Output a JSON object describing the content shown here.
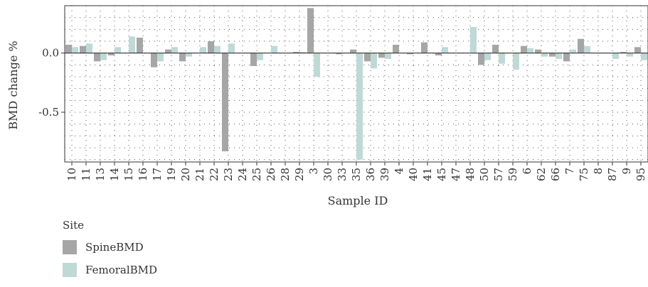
{
  "chart_data": {
    "type": "bar",
    "xlabel": "Sample ID",
    "ylabel": "BMD change %",
    "ylim": [
      -0.92,
      0.4
    ],
    "yticks": [
      "0.0",
      "-0.5"
    ],
    "ytick_values": [
      0.0,
      -0.5
    ],
    "grid": "dotted",
    "legend_title": "Site",
    "legend_position": "bottom-left",
    "categories": [
      "10",
      "11",
      "13",
      "14",
      "15",
      "16",
      "17",
      "19",
      "20",
      "21",
      "22",
      "23",
      "24",
      "25",
      "26",
      "28",
      "29",
      "3",
      "30",
      "33",
      "35",
      "36",
      "39",
      "4",
      "40",
      "41",
      "45",
      "47",
      "48",
      "50",
      "57",
      "59",
      "6",
      "62",
      "66",
      "7",
      "75",
      "8",
      "87",
      "9",
      "95"
    ],
    "series": [
      {
        "name": "SpineBMD",
        "color": "#a6a6a6",
        "values": [
          0.07,
          0.06,
          -0.07,
          -0.02,
          0.0,
          0.13,
          -0.12,
          0.03,
          -0.07,
          0.0,
          0.1,
          -0.83,
          0.0,
          -0.11,
          0.0,
          0.0,
          0.01,
          0.38,
          0.0,
          -0.01,
          0.03,
          -0.07,
          -0.04,
          0.07,
          -0.01,
          0.09,
          -0.02,
          0.0,
          0.0,
          -0.1,
          0.07,
          0.0,
          0.06,
          0.03,
          -0.03,
          -0.07,
          0.12,
          0.0,
          0.0,
          0.01,
          0.05
        ]
      },
      {
        "name": "FemoralBMD",
        "color": "#bfd9d6",
        "values": [
          0.05,
          0.08,
          -0.06,
          0.05,
          0.14,
          0.0,
          -0.07,
          0.05,
          -0.03,
          0.05,
          0.06,
          0.08,
          0.0,
          -0.06,
          0.06,
          0.0,
          0.01,
          -0.2,
          0.0,
          0.0,
          -0.9,
          -0.13,
          -0.05,
          0.0,
          0.0,
          0.0,
          0.05,
          0.0,
          0.22,
          -0.06,
          -0.09,
          -0.14,
          0.04,
          -0.03,
          -0.05,
          0.03,
          0.06,
          0.0,
          -0.05,
          -0.03,
          -0.06
        ]
      }
    ]
  }
}
